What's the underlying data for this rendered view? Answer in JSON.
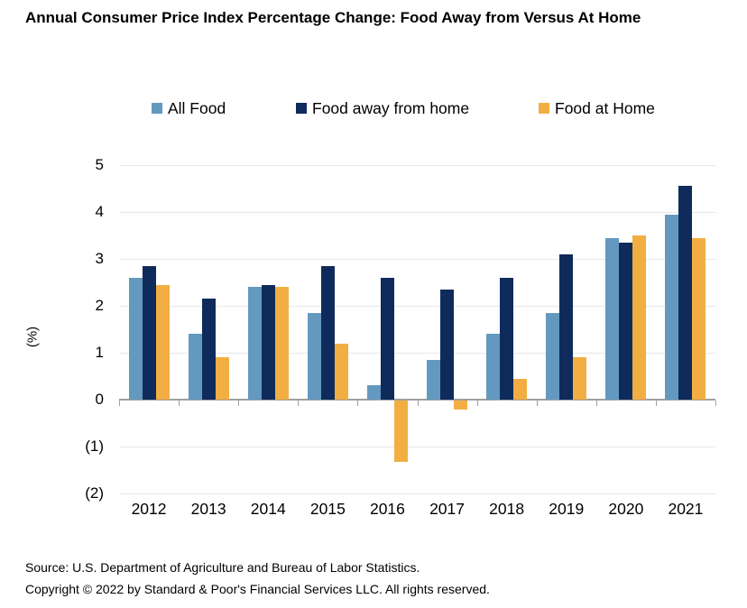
{
  "title": "Annual Consumer Price Index Percentage Change: Food Away from Versus At Home",
  "footer": {
    "source": "Source: U.S. Department of Agriculture and Bureau of Labor Statistics.",
    "copyright": "Copyright © 2022 by Standard & Poor's Financial Services LLC. All rights reserved."
  },
  "colors": {
    "all_food": "#6499BF",
    "food_away_from_home": "#0F2B5B",
    "food_at_home": "#F2AE43",
    "gridline": "#E8E8E8",
    "axis": "#A0A0A0",
    "text": "#000000",
    "background": "#FFFFFF"
  },
  "chart_data": {
    "type": "bar",
    "title": "Annual Consumer Price Index Percentage Change: Food Away from Versus At Home",
    "categories": [
      "2012",
      "2013",
      "2014",
      "2015",
      "2016",
      "2017",
      "2018",
      "2019",
      "2020",
      "2021"
    ],
    "series": [
      {
        "name": "All Food",
        "color": "#6499BF",
        "values": [
          2.6,
          1.4,
          2.4,
          1.85,
          0.3,
          0.85,
          1.4,
          1.85,
          3.45,
          3.95
        ]
      },
      {
        "name": "Food away from home",
        "color": "#0F2B5B",
        "values": [
          2.85,
          2.15,
          2.45,
          2.85,
          2.6,
          2.35,
          2.6,
          3.1,
          3.35,
          4.55
        ]
      },
      {
        "name": "Food at Home",
        "color": "#F2AE43",
        "values": [
          2.45,
          0.9,
          2.4,
          1.2,
          -1.3,
          -0.2,
          0.45,
          0.9,
          3.5,
          3.45
        ]
      }
    ],
    "xlabel": "",
    "ylabel": "(%)",
    "ylim": [
      -2,
      5
    ],
    "yticks": [
      5,
      4,
      3,
      2,
      1,
      0,
      -1,
      -2
    ],
    "ytick_labels": [
      "5",
      "4",
      "3",
      "2",
      "1",
      "0",
      "(1)",
      "(2)"
    ],
    "legend_position": "top",
    "grid": true
  }
}
